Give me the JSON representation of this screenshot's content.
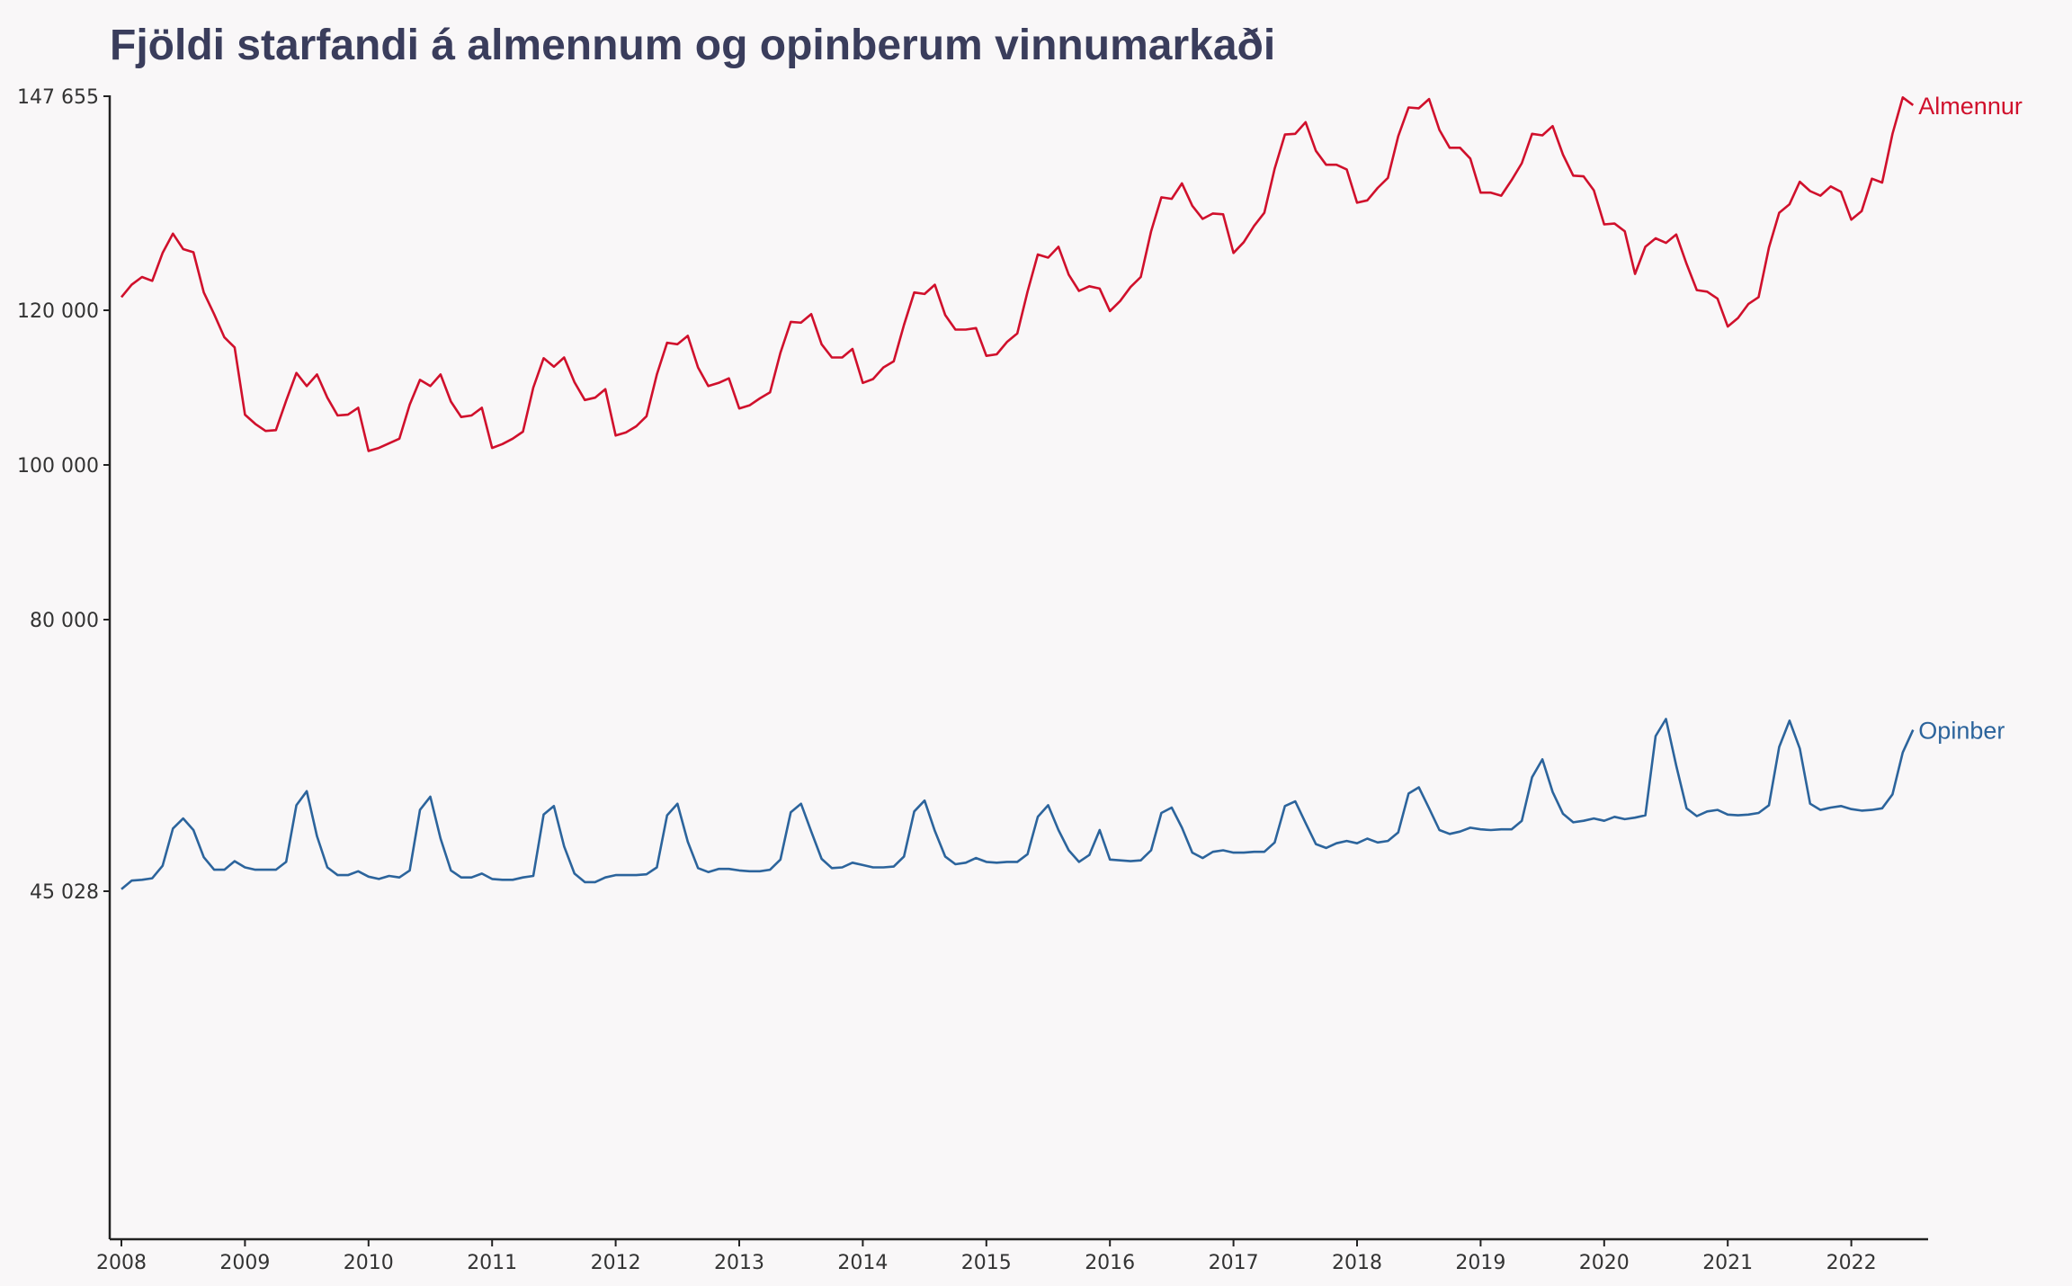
{
  "chart_data": {
    "type": "line",
    "title": "Fjöldi starfandi á almennum og opinberum vinnumarkaði",
    "xlabel": "",
    "ylabel": "",
    "x_start": "2008-01",
    "x_frequency": "monthly",
    "x_ticks": [
      "2008",
      "2009",
      "2010",
      "2011",
      "2012",
      "2013",
      "2014",
      "2015",
      "2016",
      "2017",
      "2018",
      "2019",
      "2020",
      "2021",
      "2022"
    ],
    "y_ticks": [
      {
        "value": 45028,
        "label": "45 028"
      },
      {
        "value": 80000,
        "label": "80 000"
      },
      {
        "value": 100000,
        "label": "100 000"
      },
      {
        "value": 120000,
        "label": "120 000"
      },
      {
        "value": 147655,
        "label": "147 655"
      }
    ],
    "ylim": [
      45028,
      147655
    ],
    "grid": false,
    "legend": "inline labels at line ends",
    "series": [
      {
        "name": "Almennur",
        "color": "#d0102c",
        "values": [
          121700,
          123300,
          124300,
          123800,
          127400,
          129900,
          127900,
          127500,
          122300,
          119500,
          116500,
          115200,
          106500,
          105300,
          104400,
          104500,
          108300,
          111900,
          110200,
          111700,
          108700,
          106400,
          106500,
          107400,
          101800,
          102200,
          102800,
          103400,
          107800,
          111000,
          110200,
          111700,
          108200,
          106200,
          106400,
          107400,
          102200,
          102700,
          103400,
          104300,
          110000,
          113800,
          112700,
          113900,
          110700,
          108400,
          108700,
          109800,
          103800,
          104200,
          105000,
          106300,
          111700,
          115800,
          115600,
          116700,
          112600,
          110200,
          110600,
          111200,
          107300,
          107700,
          108600,
          109400,
          114500,
          118500,
          118400,
          119500,
          115600,
          113900,
          113900,
          115000,
          110600,
          111100,
          112600,
          113400,
          118100,
          122300,
          122100,
          123300,
          119400,
          117500,
          117500,
          117700,
          114100,
          114300,
          115900,
          117000,
          122400,
          127200,
          126800,
          128200,
          124600,
          122500,
          123100,
          122800,
          119900,
          121200,
          123000,
          124300,
          130200,
          134600,
          134400,
          136400,
          133500,
          131800,
          132500,
          132400,
          127400,
          128800,
          130900,
          132600,
          138300,
          142700,
          142800,
          144300,
          140600,
          138800,
          138800,
          138200,
          133900,
          134200,
          135800,
          137100,
          142500,
          146200,
          146100,
          147300,
          143300,
          141000,
          141000,
          139600,
          135200,
          135200,
          134800,
          136800,
          139000,
          142800,
          142600,
          143800,
          140100,
          137400,
          137300,
          135500,
          131100,
          131200,
          130200,
          124700,
          128200,
          129300,
          128700,
          129800,
          126000,
          122600,
          122400,
          121500,
          117900,
          119000,
          120800,
          121700,
          128100,
          132600,
          133700,
          136600,
          135400,
          134800,
          136000,
          135300,
          131700,
          132800,
          137000,
          136500,
          142800,
          147500,
          146500
        ]
      },
      {
        "name": "Opinber",
        "color": "#2c649c",
        "values": [
          45300,
          46400,
          46500,
          46700,
          48300,
          53100,
          54400,
          52900,
          49400,
          47800,
          47800,
          48900,
          48100,
          47800,
          47800,
          47800,
          48800,
          56100,
          57900,
          52100,
          48100,
          47100,
          47100,
          47600,
          46900,
          46600,
          47000,
          46800,
          47700,
          55500,
          57200,
          51800,
          47700,
          46800,
          46800,
          47300,
          46600,
          46500,
          46500,
          46800,
          47000,
          54900,
          56000,
          50800,
          47300,
          46200,
          46200,
          46800,
          47100,
          47100,
          47100,
          47200,
          48100,
          54800,
          56300,
          51400,
          48000,
          47500,
          47900,
          47900,
          47700,
          47600,
          47600,
          47800,
          49100,
          55200,
          56300,
          52700,
          49200,
          48000,
          48100,
          48700,
          48400,
          48100,
          48100,
          48200,
          49500,
          55300,
          56700,
          52800,
          49500,
          48500,
          48700,
          49300,
          48800,
          48700,
          48800,
          48800,
          49800,
          54600,
          56100,
          52900,
          50300,
          48800,
          49700,
          52900,
          49100,
          49000,
          48900,
          49000,
          50300,
          55100,
          55800,
          53200,
          50000,
          49300,
          50100,
          50300,
          50000,
          50000,
          50100,
          50100,
          51300,
          56000,
          56600,
          53800,
          51100,
          50600,
          51200,
          51500,
          51200,
          51800,
          51300,
          51500,
          52600,
          57600,
          58400,
          55700,
          52900,
          52400,
          52700,
          53200,
          53000,
          52900,
          53000,
          53000,
          54100,
          59700,
          62000,
          57800,
          55000,
          53900,
          54100,
          54400,
          54100,
          54600,
          54300,
          54500,
          54800,
          65000,
          67200,
          61200,
          55700,
          54700,
          55300,
          55500,
          54900,
          54800,
          54900,
          55100,
          56100,
          63600,
          67000,
          63400,
          56300,
          55500,
          55800,
          56000,
          55600,
          55400,
          55500,
          55700,
          57500,
          62900,
          65800
        ]
      }
    ]
  }
}
